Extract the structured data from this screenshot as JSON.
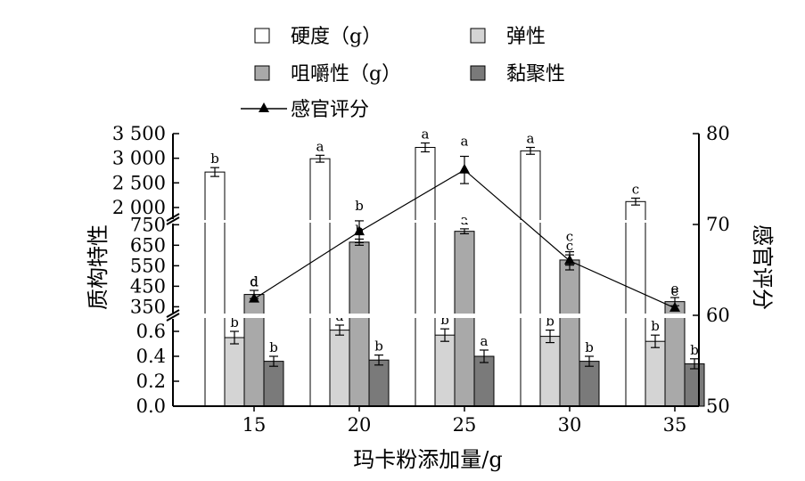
{
  "chart_data": {
    "type": "bar",
    "xlabel": "玛卡粉添加量/g",
    "ylabel_left": "质构特性",
    "ylabel_right": "感官评分",
    "categories": [
      "15",
      "20",
      "25",
      "30",
      "35"
    ],
    "y_segments": {
      "bottom": {
        "range": [
          0,
          0.7
        ],
        "ticks": [
          "0.0",
          "0.2",
          "0.4",
          "0.6"
        ]
      },
      "middle": {
        "range": [
          330,
          760
        ],
        "ticks": [
          "350",
          "450",
          "550",
          "650",
          "750"
        ]
      },
      "top": {
        "range": [
          1800,
          3500
        ],
        "ticks": [
          "2 000",
          "2 500",
          "3 000",
          "3 500"
        ]
      }
    },
    "y2": {
      "range": [
        50,
        80
      ],
      "ticks": [
        "50",
        "60",
        "70",
        "80"
      ]
    },
    "series": [
      {
        "name": "硬度（g）",
        "key": "hardness",
        "segment": "top",
        "color": "#ffffff",
        "values": [
          2720,
          2990,
          3220,
          3150,
          2120
        ],
        "errors": [
          90,
          70,
          90,
          70,
          70
        ],
        "letters": [
          "b",
          "a",
          "a",
          "a",
          "c"
        ]
      },
      {
        "name": "弹性",
        "key": "springiness",
        "segment": "bottom",
        "color": "#d4d4d4",
        "values": [
          0.55,
          0.61,
          0.57,
          0.56,
          0.52
        ],
        "errors": [
          0.05,
          0.04,
          0.05,
          0.05,
          0.05
        ],
        "letters": [
          "b",
          "a",
          "b",
          "b",
          "b"
        ]
      },
      {
        "name": "咀嚼性（g）",
        "key": "chewiness",
        "segment": "middle",
        "color": "#a9a9a9",
        "values": [
          410,
          665,
          718,
          578,
          375
        ],
        "errors": [
          20,
          15,
          12,
          25,
          20
        ],
        "letters": [
          "d",
          "b",
          "a",
          "c",
          "e"
        ]
      },
      {
        "name": "黏聚性",
        "key": "cohesiveness",
        "segment": "bottom",
        "color": "#7a7a7a",
        "values": [
          0.36,
          0.37,
          0.4,
          0.36,
          0.34
        ],
        "errors": [
          0.04,
          0.04,
          0.05,
          0.04,
          0.04
        ],
        "letters": [
          "b",
          "b",
          "a",
          "b",
          "b"
        ]
      },
      {
        "name": "感官评分",
        "key": "sensory",
        "type": "line",
        "axis": "right",
        "values": [
          61.8,
          69.2,
          76.0,
          66.0,
          60.8
        ],
        "errors": [
          0.0,
          1.2,
          1.5,
          1.0,
          0.0
        ],
        "letters": [
          "d",
          "b",
          "a",
          "c",
          "e"
        ]
      }
    ]
  }
}
